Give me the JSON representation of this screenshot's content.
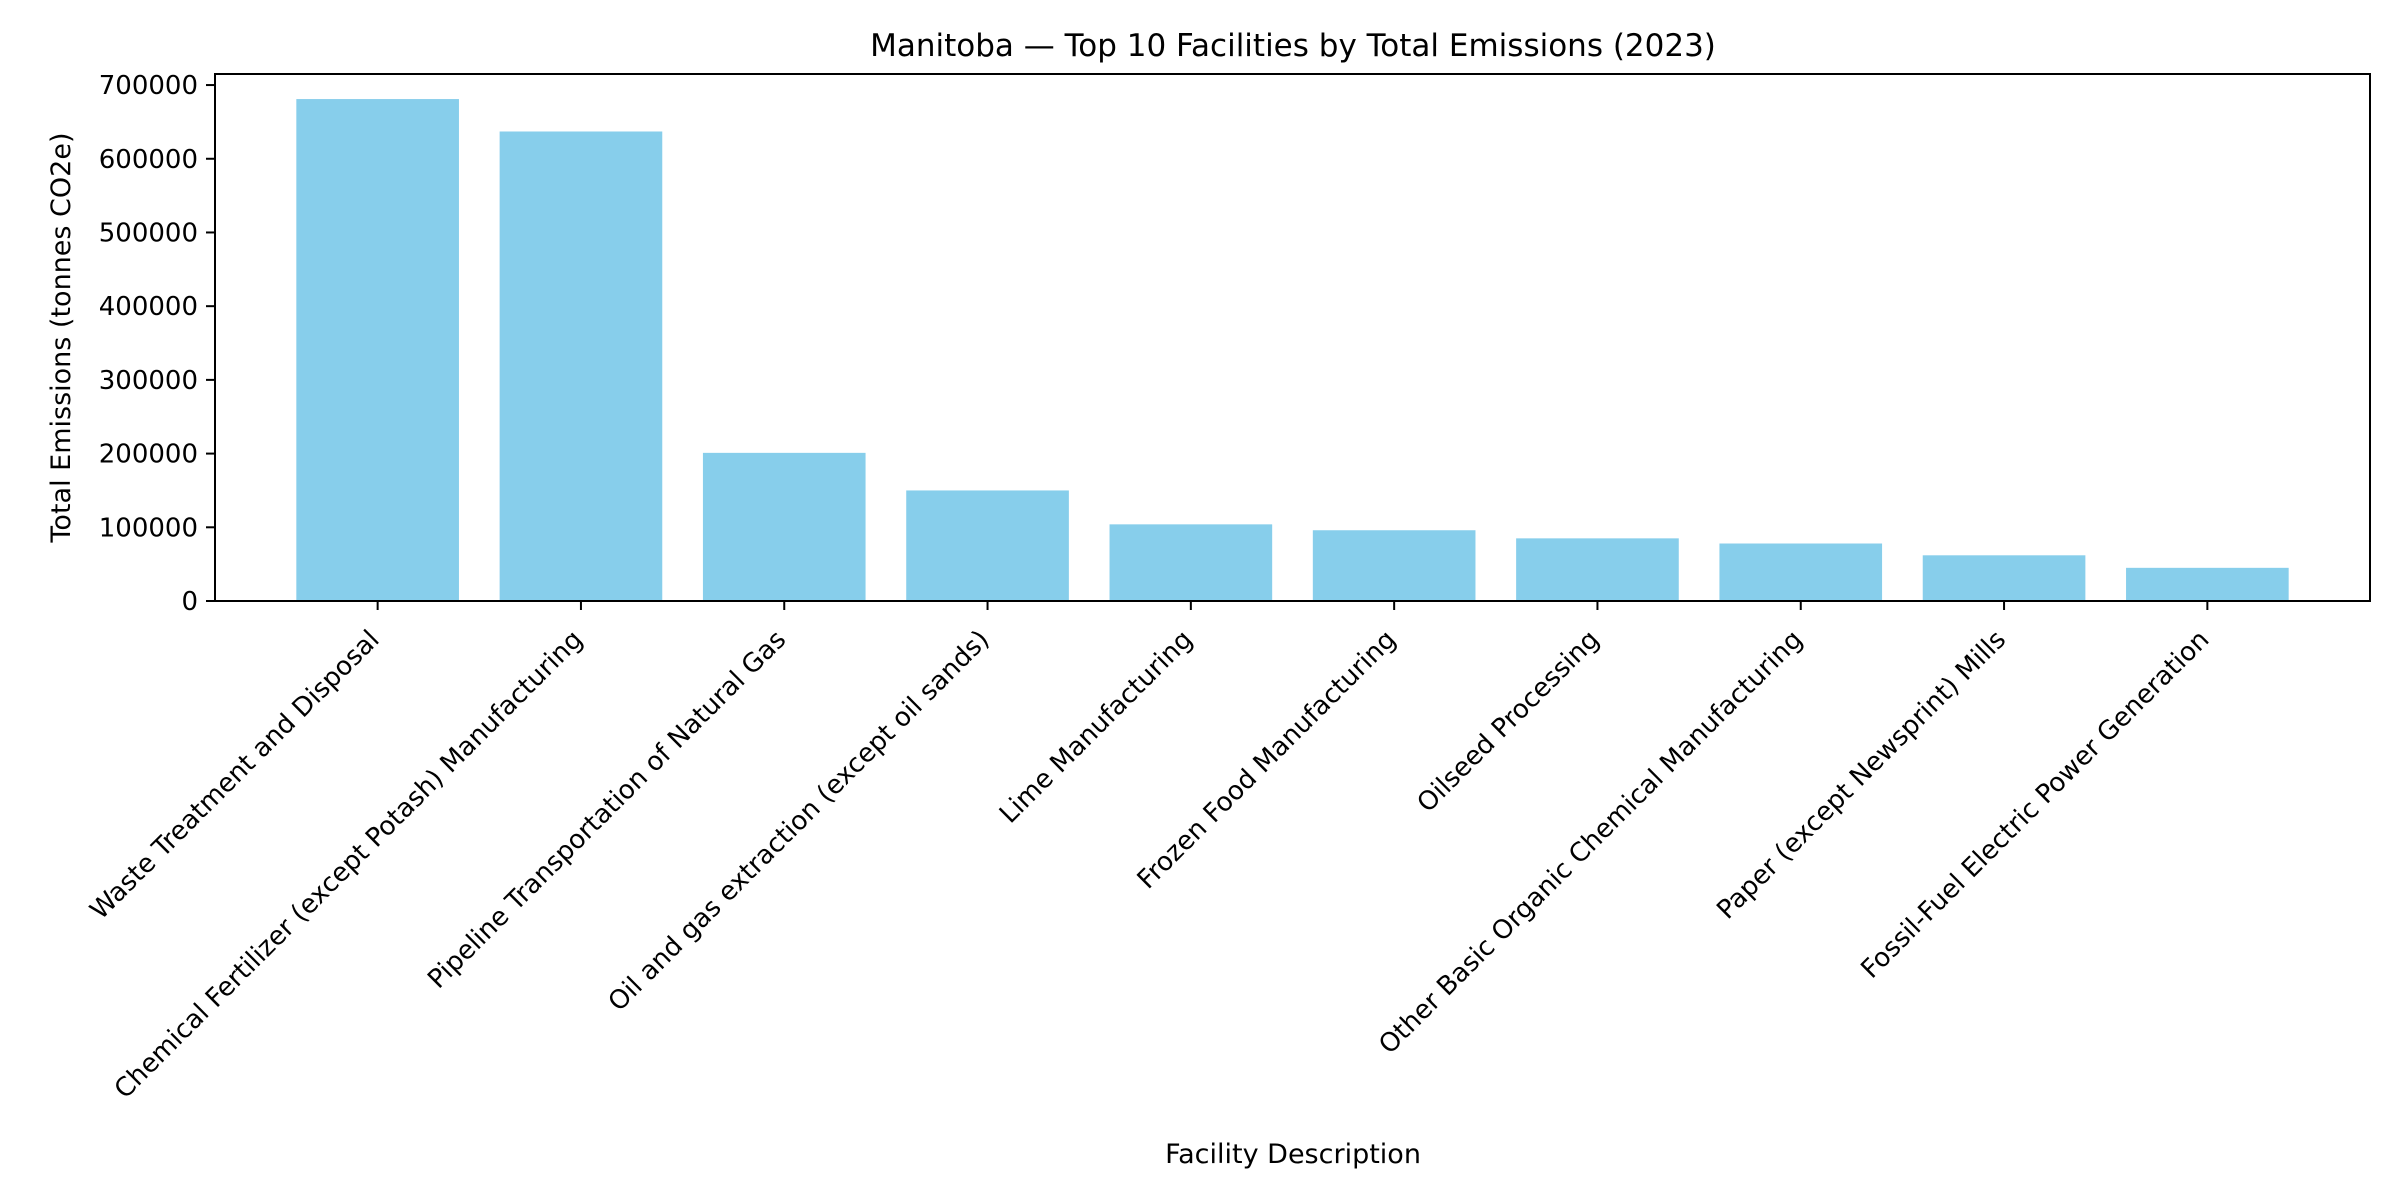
{
  "chart_data": {
    "type": "bar",
    "title": "Manitoba — Top 10 Facilities by Total Emissions (2023)",
    "xlabel": "Facility Description",
    "ylabel": "Total Emissions (tonnes CO2e)",
    "categories": [
      "Waste Treatment and Disposal",
      "Chemical Fertilizer (except Potash) Manufacturing",
      "Pipeline Transportation of Natural Gas",
      "Oil and gas extraction (except oil sands)",
      "Lime Manufacturing",
      "Frozen Food Manufacturing",
      "Oilseed Processing",
      "Other Basic Organic Chemical Manufacturing",
      "Paper (except Newsprint) Mills",
      "Fossil-Fuel Electric Power Generation"
    ],
    "values": [
      681000,
      637000,
      201000,
      150000,
      104000,
      96000,
      85000,
      78000,
      62000,
      45000
    ],
    "ylim": [
      0,
      715000
    ],
    "yticks": [
      0,
      100000,
      200000,
      300000,
      400000,
      500000,
      600000,
      700000
    ],
    "ytick_labels": [
      "0",
      "100000",
      "200000",
      "300000",
      "400000",
      "500000",
      "600000",
      "700000"
    ],
    "bar_color": "#87ceeb",
    "grid": false,
    "legend": null
  }
}
